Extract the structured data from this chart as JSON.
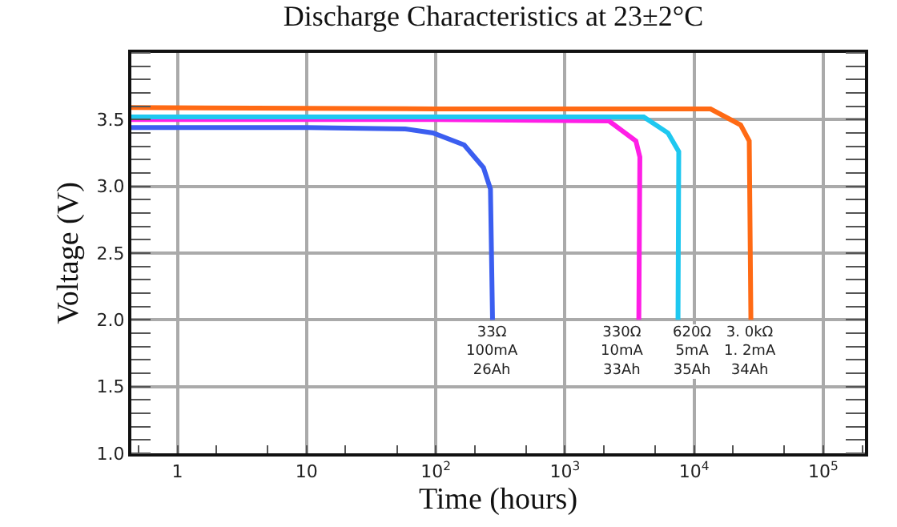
{
  "chart_data": {
    "type": "line",
    "title": "Discharge Characteristics at 23±2°C",
    "xlabel": "Time (hours)",
    "ylabel": "Voltage (V)",
    "log": "x",
    "grid": true,
    "line_style": "solid",
    "marker": "none",
    "xlim": [
      0.44,
      210000
    ],
    "ylim": [
      1.0,
      4.0
    ],
    "xticks": [
      1,
      10,
      {
        "value": 100,
        "label": "10$^{2}$"
      },
      {
        "value": 1000,
        "label": "10$^{3}$"
      },
      {
        "value": 10000,
        "label": "10$^{4}$"
      },
      {
        "value": 100000,
        "label": "10$^{5}$"
      }
    ],
    "yticks": [
      {
        "value": 1,
        "label": "1.0"
      },
      {
        "value": 1.5,
        "label": "1.5"
      },
      {
        "value": 2,
        "label": "2.0"
      },
      {
        "value": 2.5,
        "label": "2.5"
      },
      {
        "value": 3,
        "label": "3.0"
      },
      {
        "value": 3.5,
        "label": "3.5"
      }
    ],
    "series": [
      {
        "color": "#3b5ef0",
        "x": [
          0.44,
          10,
          58,
          95,
          166,
          234,
          265,
          275
        ],
        "values": [
          3.44,
          3.44,
          3.43,
          3.4,
          3.31,
          3.14,
          2.98,
          2.0
        ]
      },
      {
        "color": "#ff1ee6",
        "x": [
          0.44,
          100,
          2190,
          3540,
          3800,
          3730
        ],
        "values": [
          3.5,
          3.5,
          3.49,
          3.34,
          3.22,
          2.0
        ]
      },
      {
        "color": "#1ec8f0",
        "x": [
          0.44,
          100,
          4070,
          6270,
          7600,
          7500
        ],
        "values": [
          3.52,
          3.52,
          3.52,
          3.4,
          3.26,
          2.0
        ]
      },
      {
        "color": "#ff6a14",
        "x": [
          0.44,
          100,
          13400,
          22900,
          26700,
          27500
        ],
        "values": [
          3.59,
          3.58,
          3.58,
          3.46,
          3.34,
          2.0
        ]
      }
    ],
    "annotations": [
      {
        "text": "33Ω\n100mA\n26Ah",
        "x": 275,
        "y": 2.0
      },
      {
        "text": "330Ω\n10mA\n33Ah",
        "x": 3730,
        "y": 2.0
      },
      {
        "text": "620Ω\n5mA\n35Ah",
        "x": 7500,
        "y": 2.0
      },
      {
        "text": "3. 0kΩ\n1. 2mA\n34Ah",
        "x": 27500,
        "y": 2.0
      }
    ]
  }
}
